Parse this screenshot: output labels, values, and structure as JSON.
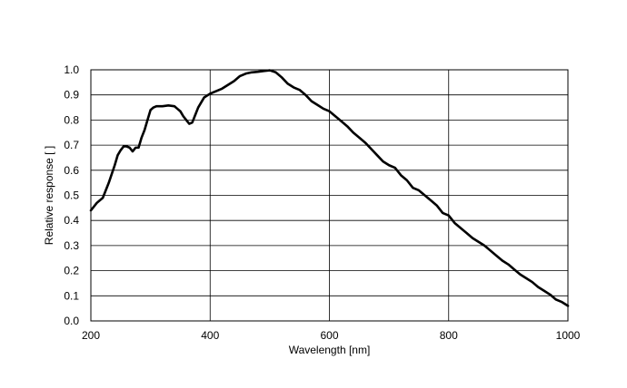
{
  "chart_data": {
    "type": "line",
    "title": "",
    "xlabel": "Wavelength [nm]",
    "ylabel": "Relative response [ ]",
    "xlim": [
      200,
      1000
    ],
    "ylim": [
      0.0,
      1.0
    ],
    "xticks": [
      200,
      400,
      600,
      800,
      1000
    ],
    "yticks": [
      0.0,
      0.1,
      0.2,
      0.3,
      0.4,
      0.5,
      0.6,
      0.7,
      0.8,
      0.9,
      1.0
    ],
    "xtick_labels": [
      "200",
      "400",
      "600",
      "800",
      "1000"
    ],
    "ytick_labels": [
      "0.0",
      "0.1",
      "0.2",
      "0.3",
      "0.4",
      "0.5",
      "0.6",
      "0.7",
      "0.8",
      "0.9",
      "1.0"
    ],
    "grid": true,
    "line_color": "#000000",
    "series": [
      {
        "x": [
          200,
          210,
          220,
          230,
          240,
          245,
          250,
          255,
          260,
          265,
          270,
          275,
          280,
          285,
          290,
          295,
          300,
          305,
          310,
          315,
          320,
          330,
          340,
          345,
          350,
          355,
          360,
          365,
          370,
          375,
          380,
          390,
          400,
          410,
          420,
          430,
          440,
          450,
          460,
          470,
          480,
          490,
          500,
          510,
          520,
          530,
          540,
          550,
          560,
          570,
          580,
          590,
          600,
          610,
          620,
          630,
          640,
          650,
          660,
          670,
          680,
          690,
          700,
          710,
          720,
          730,
          740,
          750,
          760,
          770,
          780,
          790,
          800,
          810,
          820,
          830,
          840,
          850,
          860,
          870,
          880,
          890,
          900,
          910,
          920,
          930,
          940,
          950,
          960,
          970,
          980,
          990,
          1000
        ],
        "y": [
          0.44,
          0.47,
          0.49,
          0.55,
          0.62,
          0.66,
          0.68,
          0.695,
          0.695,
          0.69,
          0.675,
          0.69,
          0.69,
          0.73,
          0.76,
          0.8,
          0.84,
          0.85,
          0.855,
          0.855,
          0.855,
          0.858,
          0.855,
          0.845,
          0.835,
          0.815,
          0.8,
          0.785,
          0.79,
          0.82,
          0.85,
          0.89,
          0.905,
          0.915,
          0.925,
          0.94,
          0.955,
          0.975,
          0.985,
          0.99,
          0.992,
          0.995,
          0.998,
          0.99,
          0.97,
          0.945,
          0.93,
          0.92,
          0.9,
          0.875,
          0.86,
          0.845,
          0.835,
          0.815,
          0.795,
          0.775,
          0.75,
          0.73,
          0.71,
          0.685,
          0.66,
          0.635,
          0.62,
          0.61,
          0.58,
          0.56,
          0.53,
          0.52,
          0.5,
          0.48,
          0.46,
          0.43,
          0.42,
          0.39,
          0.37,
          0.35,
          0.33,
          0.315,
          0.3,
          0.28,
          0.26,
          0.24,
          0.225,
          0.205,
          0.185,
          0.17,
          0.155,
          0.135,
          0.12,
          0.105,
          0.085,
          0.075,
          0.06
        ]
      }
    ]
  }
}
